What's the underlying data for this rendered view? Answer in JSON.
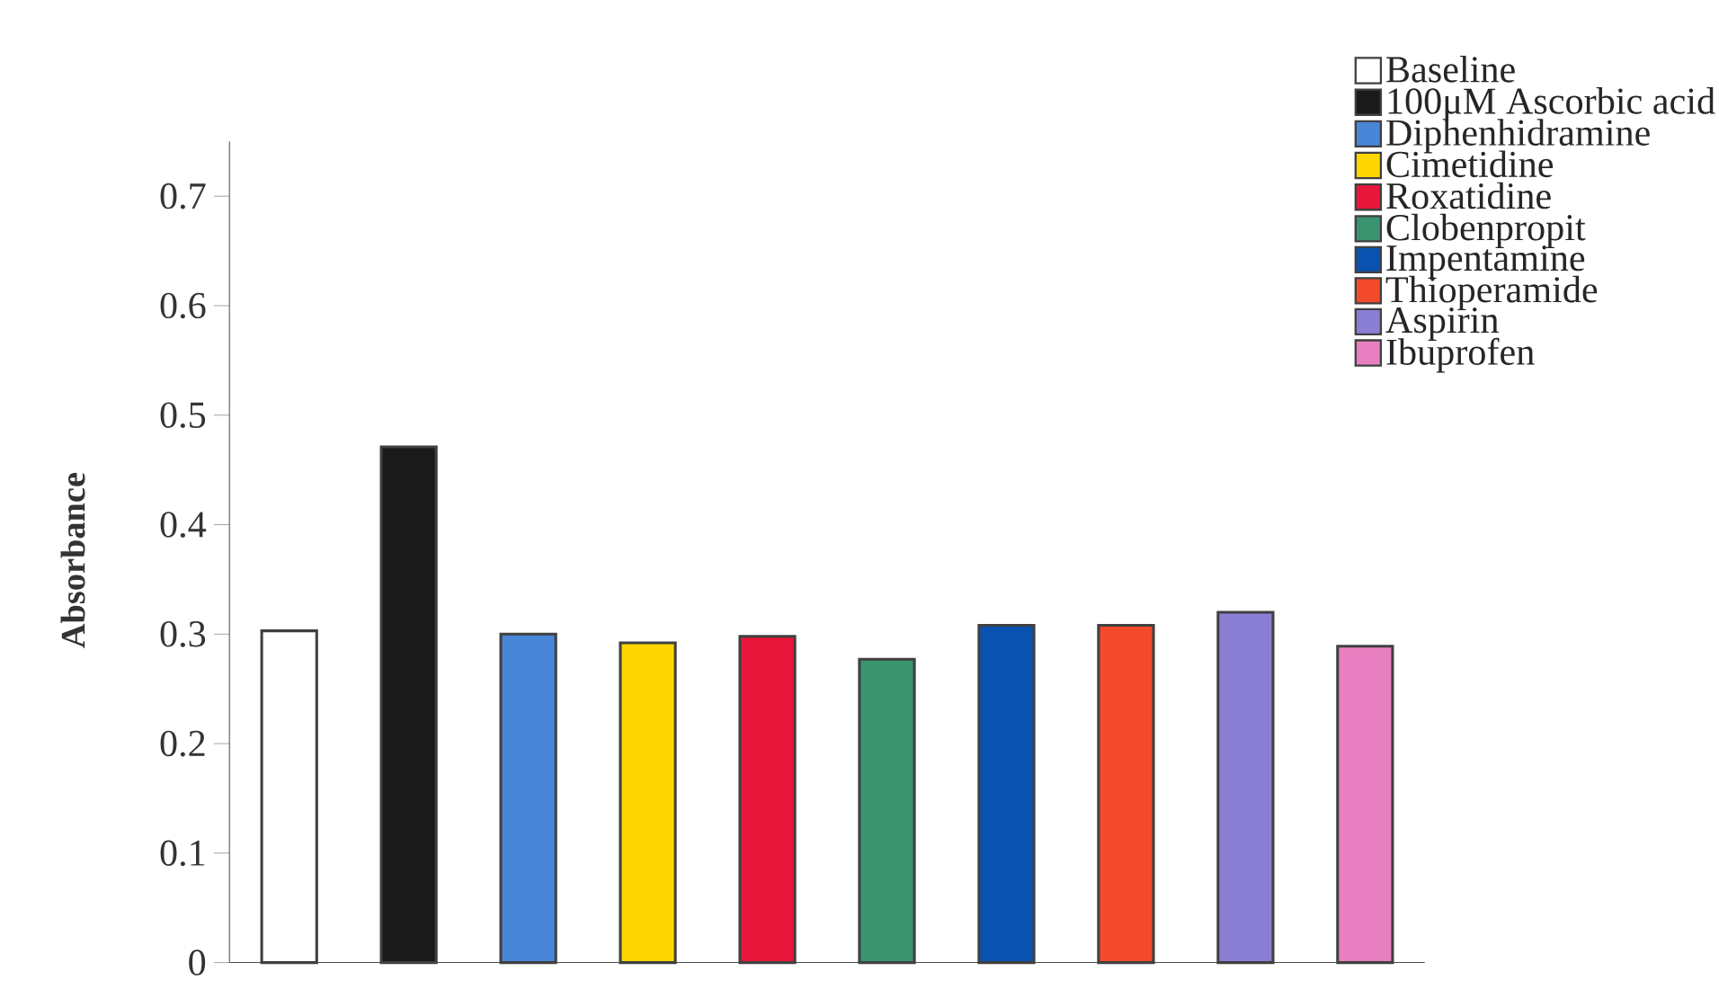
{
  "chart_data": {
    "type": "bar",
    "ylabel": "Absorbance",
    "categories": [
      null,
      null,
      null,
      null,
      null,
      null,
      null,
      null,
      null,
      null
    ],
    "series": [
      {
        "name": "Baseline",
        "color": "#ffffff",
        "values": [
          0.303,
          null,
          null,
          null,
          null,
          null,
          null,
          null,
          null,
          null
        ]
      },
      {
        "name": "100μM Ascorbic acid",
        "color": "#1a1a1a",
        "values": [
          null,
          0.471,
          null,
          null,
          null,
          null,
          null,
          null,
          null,
          null
        ]
      },
      {
        "name": "Diphenhidramine",
        "color": "#4a86d8",
        "values": [
          null,
          null,
          0.3,
          null,
          null,
          null,
          null,
          null,
          null,
          null
        ]
      },
      {
        "name": "Cimetidine",
        "color": "#ffd700",
        "values": [
          null,
          null,
          null,
          0.292,
          null,
          null,
          null,
          null,
          null,
          null
        ]
      },
      {
        "name": "Roxatidine",
        "color": "#e8163a",
        "values": [
          null,
          null,
          null,
          null,
          0.298,
          null,
          null,
          null,
          null,
          null
        ]
      },
      {
        "name": "Clobenpropit",
        "color": "#3a9470",
        "values": [
          null,
          null,
          null,
          null,
          null,
          0.277,
          null,
          null,
          null,
          null
        ]
      },
      {
        "name": "Impentamine",
        "color": "#0a52b0",
        "values": [
          null,
          null,
          null,
          null,
          null,
          null,
          0.308,
          null,
          null,
          null
        ]
      },
      {
        "name": "Thioperamide",
        "color": "#f24a2a",
        "values": [
          null,
          null,
          null,
          null,
          null,
          null,
          null,
          0.308,
          null,
          null
        ]
      },
      {
        "name": "Aspirin",
        "color": "#8a7fd4",
        "values": [
          null,
          null,
          null,
          null,
          null,
          null,
          null,
          null,
          0.32,
          null
        ]
      },
      {
        "name": "Ibuprofen",
        "color": "#e87fc0",
        "values": [
          null,
          null,
          null,
          null,
          null,
          null,
          null,
          null,
          null,
          0.289
        ]
      }
    ],
    "ylim": [
      0,
      0.75
    ],
    "yticks": [
      0,
      0.1,
      0.2,
      0.3,
      0.4,
      0.5,
      0.6,
      0.7
    ],
    "tick_labels": "y",
    "legend": "top right"
  }
}
